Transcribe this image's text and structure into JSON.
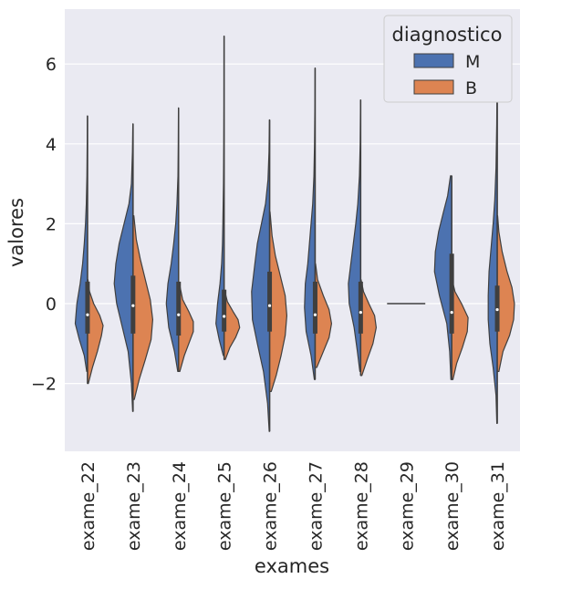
{
  "chart_data": {
    "type": "violin",
    "split": true,
    "xlabel": "exames",
    "ylabel": "valores",
    "categories": [
      "exame_22",
      "exame_23",
      "exame_24",
      "exame_25",
      "exame_26",
      "exame_27",
      "exame_28",
      "exame_29",
      "exame_30",
      "exame_31"
    ],
    "ylim": [
      -3.7,
      7.2
    ],
    "yticks": [
      -2,
      0,
      2,
      4,
      6
    ],
    "ytick_labels": [
      "−2",
      "0",
      "2",
      "4",
      "6"
    ],
    "grid": true,
    "legend": {
      "title": "diagnostico",
      "placement": "top-right",
      "entries": [
        {
          "label": "M",
          "color": "#4c72b0"
        },
        {
          "label": "B",
          "color": "#dd8452"
        }
      ]
    },
    "series": [
      {
        "name": "M",
        "color": "#4c72b0",
        "violins": [
          {
            "min": -1.7,
            "max": 4.7,
            "median": -0.28,
            "q1": -0.75,
            "q3": 0.55,
            "profile": [
              [
                -1.7,
                0.02
              ],
              [
                -1.3,
                0.08
              ],
              [
                -0.9,
                0.2
              ],
              [
                -0.5,
                0.3
              ],
              [
                0,
                0.26
              ],
              [
                0.5,
                0.18
              ],
              [
                1,
                0.12
              ],
              [
                1.5,
                0.08
              ],
              [
                2,
                0.05
              ],
              [
                2.5,
                0.03
              ],
              [
                3.2,
                0.015
              ],
              [
                4,
                0.008
              ],
              [
                4.7,
                0.003
              ]
            ]
          },
          {
            "min": -2.7,
            "max": 4.5,
            "median": -0.05,
            "q1": -0.75,
            "q3": 0.7,
            "profile": [
              [
                -2.7,
                0.01
              ],
              [
                -2,
                0.04
              ],
              [
                -1.2,
                0.12
              ],
              [
                -0.6,
                0.26
              ],
              [
                0,
                0.4
              ],
              [
                0.5,
                0.46
              ],
              [
                1,
                0.42
              ],
              [
                1.5,
                0.34
              ],
              [
                2,
                0.22
              ],
              [
                2.5,
                0.1
              ],
              [
                3,
                0.04
              ],
              [
                3.8,
                0.015
              ],
              [
                4.5,
                0.005
              ]
            ]
          },
          {
            "min": -1.7,
            "max": 4.9,
            "median": -0.28,
            "q1": -0.8,
            "q3": 0.55,
            "profile": [
              [
                -1.7,
                0.02
              ],
              [
                -1.2,
                0.1
              ],
              [
                -0.6,
                0.24
              ],
              [
                0,
                0.3
              ],
              [
                0.5,
                0.26
              ],
              [
                1,
                0.18
              ],
              [
                1.5,
                0.12
              ],
              [
                2,
                0.07
              ],
              [
                2.5,
                0.04
              ],
              [
                3.2,
                0.015
              ],
              [
                4,
                0.008
              ],
              [
                4.9,
                0.003
              ]
            ]
          },
          {
            "min": -1.3,
            "max": 6.7,
            "median": -0.32,
            "q1": -0.7,
            "q3": 0.35,
            "profile": [
              [
                -1.3,
                0.02
              ],
              [
                -0.9,
                0.12
              ],
              [
                -0.5,
                0.2
              ],
              [
                0,
                0.16
              ],
              [
                0.5,
                0.1
              ],
              [
                1,
                0.06
              ],
              [
                1.5,
                0.04
              ],
              [
                2,
                0.03
              ],
              [
                3,
                0.015
              ],
              [
                4,
                0.008
              ],
              [
                5,
                0.004
              ],
              [
                6.7,
                0.002
              ]
            ]
          },
          {
            "min": -3.2,
            "max": 4.6,
            "median": -0.05,
            "q1": -0.7,
            "q3": 0.8,
            "profile": [
              [
                -3.2,
                0.01
              ],
              [
                -2.5,
                0.05
              ],
              [
                -1.7,
                0.15
              ],
              [
                -1,
                0.3
              ],
              [
                -0.4,
                0.42
              ],
              [
                0.3,
                0.44
              ],
              [
                1,
                0.36
              ],
              [
                1.5,
                0.3
              ],
              [
                2,
                0.2
              ],
              [
                2.5,
                0.1
              ],
              [
                3.1,
                0.04
              ],
              [
                3.8,
                0.015
              ],
              [
                4.6,
                0.005
              ]
            ]
          },
          {
            "min": -1.9,
            "max": 5.9,
            "median": -0.28,
            "q1": -0.75,
            "q3": 0.55,
            "profile": [
              [
                -1.9,
                0.02
              ],
              [
                -1.3,
                0.1
              ],
              [
                -0.7,
                0.22
              ],
              [
                -0.1,
                0.26
              ],
              [
                0.5,
                0.24
              ],
              [
                1,
                0.18
              ],
              [
                1.5,
                0.14
              ],
              [
                2,
                0.1
              ],
              [
                2.5,
                0.06
              ],
              [
                3.2,
                0.03
              ],
              [
                4,
                0.015
              ],
              [
                5,
                0.006
              ],
              [
                5.9,
                0.002
              ]
            ]
          },
          {
            "min": -1.7,
            "max": 5.1,
            "median": -0.22,
            "q1": -0.75,
            "q3": 0.55,
            "profile": [
              [
                -1.7,
                0.02
              ],
              [
                -1.2,
                0.08
              ],
              [
                -0.6,
                0.16
              ],
              [
                0,
                0.28
              ],
              [
                0.5,
                0.3
              ],
              [
                1,
                0.24
              ],
              [
                1.5,
                0.18
              ],
              [
                2,
                0.12
              ],
              [
                2.5,
                0.07
              ],
              [
                3.2,
                0.03
              ],
              [
                4,
                0.012
              ],
              [
                5.1,
                0.003
              ]
            ]
          },
          {
            "min": 0,
            "max": 0,
            "median": 0,
            "q1": 0,
            "q3": 0,
            "flat": true,
            "halfwidth": 0.42,
            "profile": []
          },
          {
            "min": -1.9,
            "max": 3.2,
            "median": -0.22,
            "q1": -0.75,
            "q3": 1.25,
            "profile": [
              [
                -1.9,
                0.02
              ],
              [
                -1.2,
                0.05
              ],
              [
                -0.5,
                0.12
              ],
              [
                0.2,
                0.3
              ],
              [
                0.8,
                0.42
              ],
              [
                1.3,
                0.4
              ],
              [
                1.8,
                0.32
              ],
              [
                2.3,
                0.2
              ],
              [
                2.7,
                0.1
              ],
              [
                3.2,
                0.03
              ]
            ]
          },
          {
            "min": -3.0,
            "max": 6.5,
            "median": -0.15,
            "q1": -0.7,
            "q3": 0.45,
            "profile": [
              [
                -3,
                0.01
              ],
              [
                -2.3,
                0.03
              ],
              [
                -1.6,
                0.1
              ],
              [
                -1,
                0.18
              ],
              [
                -0.4,
                0.22
              ],
              [
                0.2,
                0.22
              ],
              [
                0.8,
                0.2
              ],
              [
                1.4,
                0.15
              ],
              [
                2,
                0.1
              ],
              [
                2.6,
                0.06
              ],
              [
                3.4,
                0.03
              ],
              [
                4.5,
                0.012
              ],
              [
                5.5,
                0.005
              ],
              [
                6.5,
                0.002
              ]
            ]
          }
        ]
      },
      {
        "name": "B",
        "color": "#dd8452",
        "violins": [
          {
            "min": -2.0,
            "max": 0.6,
            "profile": [
              [
                -2,
                0.02
              ],
              [
                -1.6,
                0.12
              ],
              [
                -1.2,
                0.24
              ],
              [
                -0.8,
                0.34
              ],
              [
                -0.55,
                0.38
              ],
              [
                -0.3,
                0.3
              ],
              [
                0,
                0.15
              ],
              [
                0.3,
                0.05
              ],
              [
                0.6,
                0.01
              ]
            ]
          },
          {
            "min": -2.4,
            "max": 2.2,
            "profile": [
              [
                -2.4,
                0.03
              ],
              [
                -1.9,
                0.15
              ],
              [
                -1.4,
                0.3
              ],
              [
                -0.9,
                0.44
              ],
              [
                -0.4,
                0.48
              ],
              [
                0.1,
                0.42
              ],
              [
                0.6,
                0.3
              ],
              [
                1.1,
                0.18
              ],
              [
                1.6,
                0.08
              ],
              [
                2.2,
                0.02
              ]
            ]
          },
          {
            "min": -1.7,
            "max": 0.5,
            "profile": [
              [
                -1.7,
                0.03
              ],
              [
                -1.3,
                0.14
              ],
              [
                -1,
                0.25
              ],
              [
                -0.7,
                0.36
              ],
              [
                -0.45,
                0.36
              ],
              [
                -0.2,
                0.25
              ],
              [
                0.1,
                0.1
              ],
              [
                0.5,
                0.02
              ]
            ]
          },
          {
            "min": -1.4,
            "max": 0.3,
            "profile": [
              [
                -1.4,
                0.03
              ],
              [
                -1.1,
                0.14
              ],
              [
                -0.85,
                0.28
              ],
              [
                -0.6,
                0.38
              ],
              [
                -0.4,
                0.34
              ],
              [
                -0.2,
                0.22
              ],
              [
                0.05,
                0.08
              ],
              [
                0.3,
                0.02
              ]
            ]
          },
          {
            "min": -2.2,
            "max": 2.3,
            "profile": [
              [
                -2.2,
                0.04
              ],
              [
                -1.8,
                0.16
              ],
              [
                -1.3,
                0.28
              ],
              [
                -0.8,
                0.38
              ],
              [
                -0.3,
                0.42
              ],
              [
                0.2,
                0.38
              ],
              [
                0.7,
                0.26
              ],
              [
                1.2,
                0.14
              ],
              [
                1.7,
                0.06
              ],
              [
                2.3,
                0.01
              ]
            ]
          },
          {
            "min": -1.6,
            "max": 1.0,
            "profile": [
              [
                -1.6,
                0.04
              ],
              [
                -1.2,
                0.2
              ],
              [
                -0.85,
                0.34
              ],
              [
                -0.5,
                0.4
              ],
              [
                -0.15,
                0.34
              ],
              [
                0.2,
                0.2
              ],
              [
                0.6,
                0.06
              ],
              [
                1,
                0.01
              ]
            ]
          },
          {
            "min": -1.8,
            "max": 0.6,
            "profile": [
              [
                -1.8,
                0.03
              ],
              [
                -1.4,
                0.16
              ],
              [
                -1,
                0.3
              ],
              [
                -0.6,
                0.38
              ],
              [
                -0.3,
                0.34
              ],
              [
                0,
                0.2
              ],
              [
                0.3,
                0.07
              ],
              [
                0.6,
                0.01
              ]
            ]
          },
          {
            "min": 0,
            "max": 0,
            "flat": true,
            "halfwidth": 0.42,
            "profile": []
          },
          {
            "min": -1.9,
            "max": 0.6,
            "profile": [
              [
                -1.9,
                0.03
              ],
              [
                -1.5,
                0.12
              ],
              [
                -1.1,
                0.26
              ],
              [
                -0.7,
                0.38
              ],
              [
                -0.35,
                0.4
              ],
              [
                0,
                0.24
              ],
              [
                0.3,
                0.08
              ],
              [
                0.6,
                0.01
              ]
            ]
          },
          {
            "min": -1.7,
            "max": 2.2,
            "profile": [
              [
                -1.7,
                0.04
              ],
              [
                -1.2,
                0.14
              ],
              [
                -0.8,
                0.3
              ],
              [
                -0.4,
                0.4
              ],
              [
                0,
                0.42
              ],
              [
                0.4,
                0.36
              ],
              [
                0.8,
                0.24
              ],
              [
                1.3,
                0.12
              ],
              [
                1.8,
                0.04
              ],
              [
                2.2,
                0.01
              ]
            ]
          }
        ]
      }
    ]
  }
}
